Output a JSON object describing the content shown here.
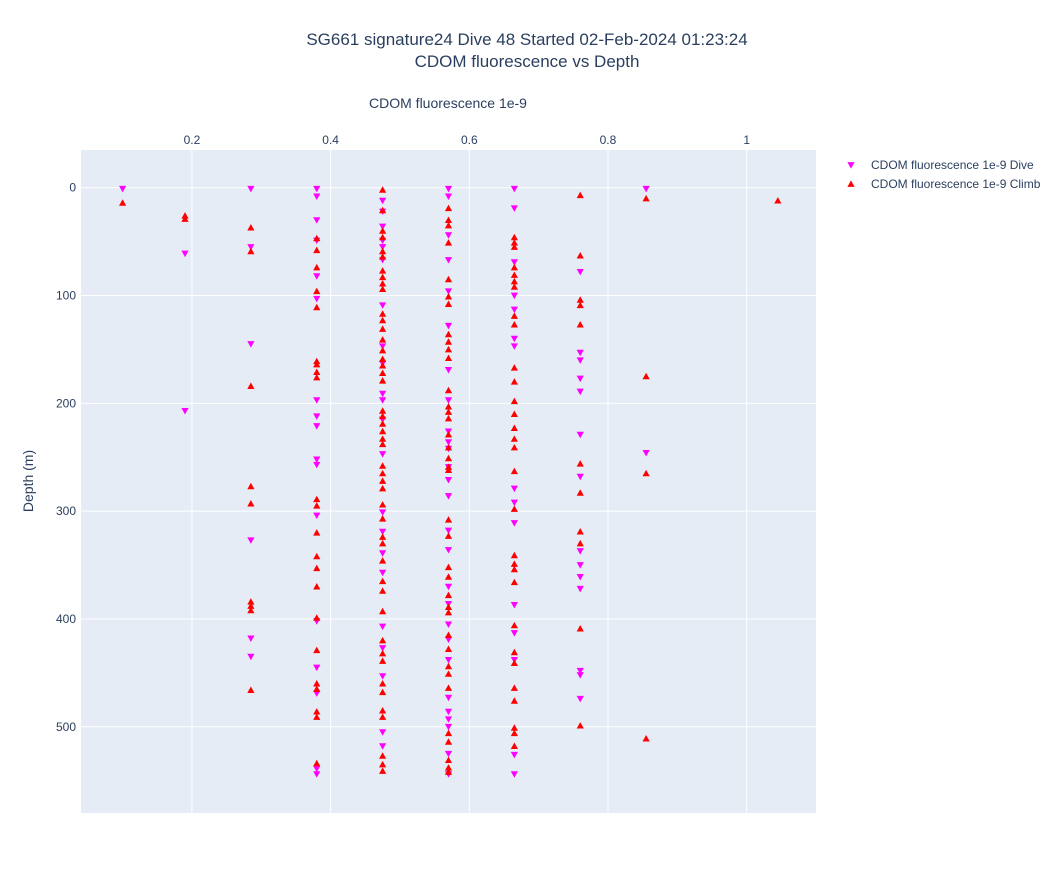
{
  "chart_data": {
    "type": "scatter",
    "title": "SG661 signature24 Dive 48 Started 02-Feb-2024 01:23:24",
    "subtitle": "CDOM fluorescence vs Depth",
    "xlabel": "CDOM fluorescence 1e-9",
    "ylabel": "Depth (m)",
    "xaxis_side": "top",
    "y_reversed": true,
    "xlim": [
      0.04,
      1.1
    ],
    "ylim": [
      580,
      -35
    ],
    "x_ticks": [
      {
        "value": 0.2,
        "label": "0.2"
      },
      {
        "value": 0.4,
        "label": "0.4"
      },
      {
        "value": 0.6,
        "label": "0.6"
      },
      {
        "value": 0.8,
        "label": "0.8"
      },
      {
        "value": 1.0,
        "label": "1"
      }
    ],
    "y_ticks": [
      {
        "value": 0,
        "label": "0"
      },
      {
        "value": 100,
        "label": "100"
      },
      {
        "value": 200,
        "label": "200"
      },
      {
        "value": 300,
        "label": "300"
      },
      {
        "value": 400,
        "label": "400"
      },
      {
        "value": 500,
        "label": "500"
      }
    ],
    "grid": true,
    "legend_position": "top-right",
    "series": [
      {
        "name": "CDOM fluorescence 1e-9 Dive",
        "marker": "triangle-down",
        "color": "#ff00ff",
        "points": [
          [
            0.1,
            1
          ],
          [
            0.19,
            61
          ],
          [
            0.19,
            207
          ],
          [
            0.285,
            1
          ],
          [
            0.285,
            55
          ],
          [
            0.285,
            145
          ],
          [
            0.285,
            327
          ],
          [
            0.285,
            418
          ],
          [
            0.285,
            435
          ],
          [
            0.38,
            1
          ],
          [
            0.38,
            8
          ],
          [
            0.38,
            30
          ],
          [
            0.38,
            49
          ],
          [
            0.38,
            82
          ],
          [
            0.38,
            103
          ],
          [
            0.38,
            197
          ],
          [
            0.38,
            212
          ],
          [
            0.38,
            221
          ],
          [
            0.38,
            252
          ],
          [
            0.38,
            257
          ],
          [
            0.38,
            304
          ],
          [
            0.38,
            402
          ],
          [
            0.38,
            445
          ],
          [
            0.38,
            469
          ],
          [
            0.38,
            539
          ],
          [
            0.38,
            544
          ],
          [
            0.475,
            12
          ],
          [
            0.475,
            22
          ],
          [
            0.475,
            36
          ],
          [
            0.475,
            49
          ],
          [
            0.475,
            55
          ],
          [
            0.475,
            67
          ],
          [
            0.475,
            109
          ],
          [
            0.475,
            147
          ],
          [
            0.475,
            163
          ],
          [
            0.475,
            191
          ],
          [
            0.475,
            197
          ],
          [
            0.475,
            215
          ],
          [
            0.475,
            247
          ],
          [
            0.475,
            301
          ],
          [
            0.475,
            319
          ],
          [
            0.475,
            339
          ],
          [
            0.475,
            357
          ],
          [
            0.475,
            407
          ],
          [
            0.475,
            427
          ],
          [
            0.475,
            453
          ],
          [
            0.475,
            505
          ],
          [
            0.475,
            518
          ],
          [
            0.57,
            1
          ],
          [
            0.57,
            8
          ],
          [
            0.57,
            44
          ],
          [
            0.57,
            67
          ],
          [
            0.57,
            96
          ],
          [
            0.57,
            128
          ],
          [
            0.57,
            169
          ],
          [
            0.57,
            197
          ],
          [
            0.57,
            226
          ],
          [
            0.57,
            236
          ],
          [
            0.57,
            242
          ],
          [
            0.57,
            259
          ],
          [
            0.57,
            271
          ],
          [
            0.57,
            286
          ],
          [
            0.57,
            318
          ],
          [
            0.57,
            336
          ],
          [
            0.57,
            370
          ],
          [
            0.57,
            386
          ],
          [
            0.57,
            405
          ],
          [
            0.57,
            419
          ],
          [
            0.57,
            438
          ],
          [
            0.57,
            473
          ],
          [
            0.57,
            486
          ],
          [
            0.57,
            493
          ],
          [
            0.57,
            500
          ],
          [
            0.57,
            525
          ],
          [
            0.57,
            544
          ],
          [
            0.665,
            1
          ],
          [
            0.665,
            19
          ],
          [
            0.665,
            69
          ],
          [
            0.665,
            100
          ],
          [
            0.665,
            113
          ],
          [
            0.665,
            140
          ],
          [
            0.665,
            147
          ],
          [
            0.665,
            279
          ],
          [
            0.665,
            292
          ],
          [
            0.665,
            311
          ],
          [
            0.665,
            387
          ],
          [
            0.665,
            413
          ],
          [
            0.665,
            438
          ],
          [
            0.665,
            526
          ],
          [
            0.665,
            544
          ],
          [
            0.76,
            78
          ],
          [
            0.76,
            153
          ],
          [
            0.76,
            160
          ],
          [
            0.76,
            177
          ],
          [
            0.76,
            189
          ],
          [
            0.76,
            229
          ],
          [
            0.76,
            268
          ],
          [
            0.76,
            337
          ],
          [
            0.76,
            350
          ],
          [
            0.76,
            361
          ],
          [
            0.76,
            372
          ],
          [
            0.76,
            448
          ],
          [
            0.76,
            452
          ],
          [
            0.76,
            474
          ],
          [
            0.855,
            1
          ],
          [
            0.855,
            246
          ]
        ]
      },
      {
        "name": "CDOM fluorescence 1e-9 Climb",
        "marker": "triangle-up",
        "color": "#ff0000",
        "points": [
          [
            0.1,
            14
          ],
          [
            0.19,
            26
          ],
          [
            0.19,
            29
          ],
          [
            0.285,
            37
          ],
          [
            0.285,
            59
          ],
          [
            0.285,
            184
          ],
          [
            0.285,
            277
          ],
          [
            0.285,
            293
          ],
          [
            0.285,
            384
          ],
          [
            0.285,
            388
          ],
          [
            0.285,
            392
          ],
          [
            0.285,
            466
          ],
          [
            0.38,
            47
          ],
          [
            0.38,
            58
          ],
          [
            0.38,
            74
          ],
          [
            0.38,
            96
          ],
          [
            0.38,
            111
          ],
          [
            0.38,
            161
          ],
          [
            0.38,
            164
          ],
          [
            0.38,
            171
          ],
          [
            0.38,
            176
          ],
          [
            0.38,
            289
          ],
          [
            0.38,
            295
          ],
          [
            0.38,
            320
          ],
          [
            0.38,
            342
          ],
          [
            0.38,
            353
          ],
          [
            0.38,
            370
          ],
          [
            0.38,
            399
          ],
          [
            0.38,
            429
          ],
          [
            0.38,
            460
          ],
          [
            0.38,
            465
          ],
          [
            0.38,
            486
          ],
          [
            0.38,
            491
          ],
          [
            0.38,
            534
          ],
          [
            0.475,
            2
          ],
          [
            0.475,
            21
          ],
          [
            0.475,
            40
          ],
          [
            0.475,
            46
          ],
          [
            0.475,
            59
          ],
          [
            0.475,
            64
          ],
          [
            0.475,
            77
          ],
          [
            0.475,
            83
          ],
          [
            0.475,
            89
          ],
          [
            0.475,
            94
          ],
          [
            0.475,
            117
          ],
          [
            0.475,
            123
          ],
          [
            0.475,
            131
          ],
          [
            0.475,
            141
          ],
          [
            0.475,
            151
          ],
          [
            0.475,
            159
          ],
          [
            0.475,
            165
          ],
          [
            0.475,
            172
          ],
          [
            0.475,
            179
          ],
          [
            0.475,
            207
          ],
          [
            0.475,
            212
          ],
          [
            0.475,
            219
          ],
          [
            0.475,
            226
          ],
          [
            0.475,
            233
          ],
          [
            0.475,
            238
          ],
          [
            0.475,
            258
          ],
          [
            0.475,
            265
          ],
          [
            0.475,
            272
          ],
          [
            0.475,
            279
          ],
          [
            0.475,
            294
          ],
          [
            0.475,
            307
          ],
          [
            0.475,
            324
          ],
          [
            0.475,
            330
          ],
          [
            0.475,
            346
          ],
          [
            0.475,
            365
          ],
          [
            0.475,
            374
          ],
          [
            0.475,
            393
          ],
          [
            0.475,
            420
          ],
          [
            0.475,
            432
          ],
          [
            0.475,
            439
          ],
          [
            0.475,
            460
          ],
          [
            0.475,
            468
          ],
          [
            0.475,
            485
          ],
          [
            0.475,
            491
          ],
          [
            0.475,
            527
          ],
          [
            0.475,
            535
          ],
          [
            0.475,
            541
          ],
          [
            0.57,
            19
          ],
          [
            0.57,
            30
          ],
          [
            0.57,
            35
          ],
          [
            0.57,
            51
          ],
          [
            0.57,
            85
          ],
          [
            0.57,
            101
          ],
          [
            0.57,
            108
          ],
          [
            0.57,
            136
          ],
          [
            0.57,
            143
          ],
          [
            0.57,
            150
          ],
          [
            0.57,
            158
          ],
          [
            0.57,
            188
          ],
          [
            0.57,
            203
          ],
          [
            0.57,
            208
          ],
          [
            0.57,
            214
          ],
          [
            0.57,
            229
          ],
          [
            0.57,
            241
          ],
          [
            0.57,
            251
          ],
          [
            0.57,
            259
          ],
          [
            0.57,
            262
          ],
          [
            0.57,
            308
          ],
          [
            0.57,
            323
          ],
          [
            0.57,
            352
          ],
          [
            0.57,
            361
          ],
          [
            0.57,
            378
          ],
          [
            0.57,
            389
          ],
          [
            0.57,
            394
          ],
          [
            0.57,
            415
          ],
          [
            0.57,
            428
          ],
          [
            0.57,
            444
          ],
          [
            0.57,
            451
          ],
          [
            0.57,
            464
          ],
          [
            0.57,
            506
          ],
          [
            0.57,
            514
          ],
          [
            0.57,
            531
          ],
          [
            0.57,
            538
          ],
          [
            0.57,
            542
          ],
          [
            0.665,
            46
          ],
          [
            0.665,
            51
          ],
          [
            0.665,
            55
          ],
          [
            0.665,
            74
          ],
          [
            0.665,
            81
          ],
          [
            0.665,
            87
          ],
          [
            0.665,
            92
          ],
          [
            0.665,
            119
          ],
          [
            0.665,
            127
          ],
          [
            0.665,
            167
          ],
          [
            0.665,
            180
          ],
          [
            0.665,
            198
          ],
          [
            0.665,
            210
          ],
          [
            0.665,
            223
          ],
          [
            0.665,
            233
          ],
          [
            0.665,
            241
          ],
          [
            0.665,
            263
          ],
          [
            0.665,
            298
          ],
          [
            0.665,
            341
          ],
          [
            0.665,
            349
          ],
          [
            0.665,
            354
          ],
          [
            0.665,
            366
          ],
          [
            0.665,
            406
          ],
          [
            0.665,
            431
          ],
          [
            0.665,
            441
          ],
          [
            0.665,
            464
          ],
          [
            0.665,
            476
          ],
          [
            0.665,
            501
          ],
          [
            0.665,
            506
          ],
          [
            0.665,
            518
          ],
          [
            0.76,
            7
          ],
          [
            0.76,
            63
          ],
          [
            0.76,
            104
          ],
          [
            0.76,
            109
          ],
          [
            0.76,
            127
          ],
          [
            0.76,
            256
          ],
          [
            0.76,
            283
          ],
          [
            0.76,
            319
          ],
          [
            0.76,
            330
          ],
          [
            0.76,
            409
          ],
          [
            0.76,
            499
          ],
          [
            0.855,
            10
          ],
          [
            0.855,
            175
          ],
          [
            0.855,
            265
          ],
          [
            0.855,
            511
          ],
          [
            1.045,
            12
          ]
        ]
      }
    ]
  }
}
